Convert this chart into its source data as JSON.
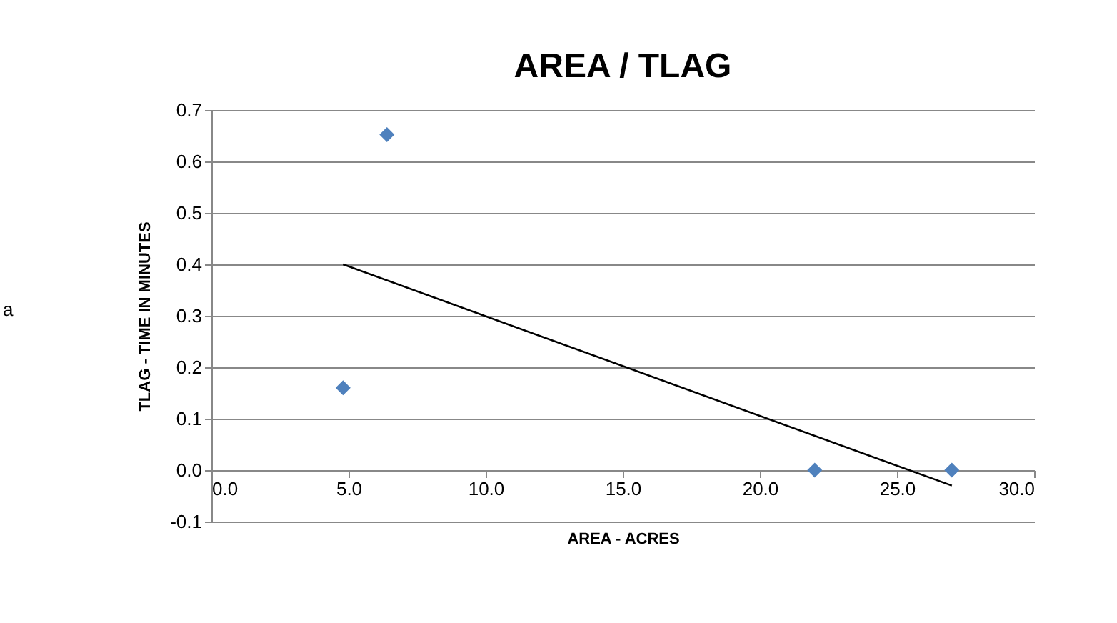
{
  "chart_data": {
    "type": "scatter",
    "title": "AREA / TLAG",
    "xlabel": "AREA - ACRES",
    "ylabel": "TLAG - TIME IN MINUTES",
    "annotations": [
      "a"
    ],
    "series": [
      {
        "color": "#4f81bd",
        "marker": "diamond",
        "x": [
          4.8,
          6.4,
          22.0,
          27.0
        ],
        "values": [
          0.16,
          0.652,
          0,
          0
        ]
      },
      {
        "type": "line",
        "color": "#000000",
        "x": [
          4.8,
          27.0
        ],
        "values": [
          0.4,
          -0.03
        ]
      }
    ],
    "xlim": [
      0,
      30
    ],
    "xticks": [
      {
        "value": 0,
        "label": "0.0"
      },
      {
        "value": 5,
        "label": "5.0"
      },
      {
        "value": 10,
        "label": "10.0"
      },
      {
        "value": 15,
        "label": "15.0"
      },
      {
        "value": 20,
        "label": "20.0"
      },
      {
        "value": 25,
        "label": "25.0"
      },
      {
        "value": 30,
        "label": "30.0"
      }
    ],
    "ylim": [
      -0.1,
      0.7
    ],
    "yticks": [
      -0.1,
      {
        "value": 0,
        "label": "0.0"
      },
      0.1,
      0.2,
      0.3,
      0.4,
      0.5,
      0.6,
      0.7
    ],
    "grid": "y"
  }
}
